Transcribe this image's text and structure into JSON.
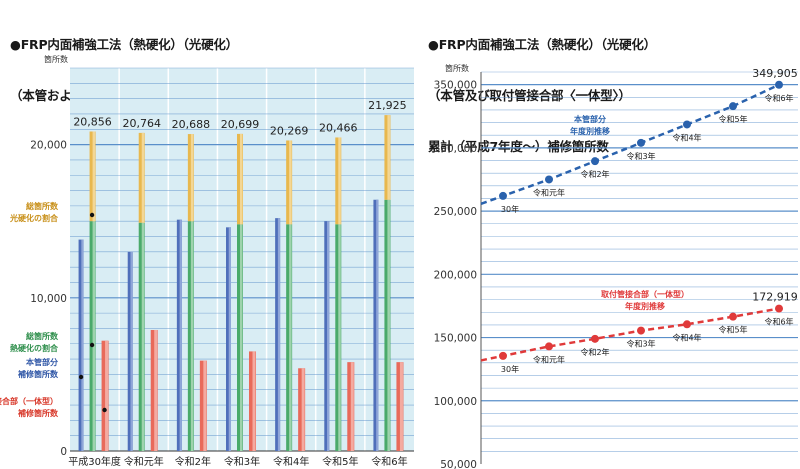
{
  "left_title": [
    "●FRP内面補強工法（熱硬化）（光硬化）",
    "（本管および取付管接合部〈一体型〉）補修箇所数"
  ],
  "right_title": [
    "●FRP内面補強工法（熱硬化）（光硬化）",
    "（本管及び取付管接合部〈一体型〉）",
    "累計（平成7年度～）補修箇所数"
  ],
  "colors": {
    "bg_panel": "#d9edf4",
    "grid": "#5a8fca",
    "blue": "#4f6fba",
    "green": "#4aaa6a",
    "yellow": "#e8b84e",
    "red": "#e86a5a",
    "blue_line": "#2a62ad",
    "red_line": "#e03a3a"
  },
  "chart_data": [
    {
      "type": "bar",
      "title": "FRP内面補強工法（熱硬化）（光硬化）（本管および取付管接合部〈一体型〉）補修箇所数",
      "ylabel": "箇所数",
      "ylim": [
        0,
        25000
      ],
      "yticks": [
        0,
        10000,
        20000
      ],
      "ytick_labels": [
        "0",
        "10,000",
        "20,000"
      ],
      "categories": [
        "平成30年度",
        "令和元年",
        "令和2年",
        "令和3年",
        "令和4年",
        "令和5年",
        "令和6年"
      ],
      "totals": [
        20856,
        20764,
        20688,
        20699,
        20269,
        20466,
        21925
      ],
      "total_labels": [
        "20,856",
        "20,764",
        "20,688",
        "20,699",
        "20,269",
        "20,466",
        "21,925"
      ],
      "series": [
        {
          "name": "本管部分 補修箇所数",
          "values": [
            13800,
            13000,
            15100,
            14600,
            15200,
            15000,
            16400
          ]
        },
        {
          "name": "総箇所数 熱硬化の割合",
          "values": [
            15000,
            14900,
            15000,
            14800,
            14800,
            14800,
            16400
          ]
        },
        {
          "name": "総箇所数 光硬化の割合",
          "values": [
            20856,
            20764,
            20688,
            20699,
            20269,
            20466,
            21925
          ]
        },
        {
          "name": "接合部（一体型） 補修箇所数",
          "values": [
            7200,
            7900,
            5900,
            6500,
            5400,
            5800,
            5800
          ]
        }
      ],
      "annotations": [
        {
          "lines": [
            "総箇所数",
            "光硬化の割合"
          ],
          "color": "#c8901a"
        },
        {
          "lines": [
            "総箇所数",
            "熱硬化の割合"
          ],
          "color": "#2f8f4c"
        },
        {
          "lines": [
            "本管部分",
            "補修箇所数"
          ],
          "color": "#2f56a6"
        },
        {
          "lines": [
            "接合部（一体型）",
            "補修箇所数"
          ],
          "color": "#d8392b"
        }
      ]
    },
    {
      "type": "line",
      "title": "FRP内面補強工法（熱硬化）（光硬化）（本管及び取付管接合部〈一体型〉）累計（平成7年度～）補修箇所数",
      "ylabel": "箇所数",
      "ylim": [
        50000,
        360000
      ],
      "yticks": [
        50000,
        100000,
        150000,
        200000,
        250000,
        300000,
        350000
      ],
      "ytick_labels": [
        "50,000",
        "100,000",
        "150,000",
        "200,000",
        "250,000",
        "300,000",
        "350,000"
      ],
      "x": [
        "30年",
        "令和元年",
        "令和2年",
        "令和3年",
        "令和4年",
        "令和5年",
        "令和6年"
      ],
      "series": [
        {
          "name": "本管部分 年度別推移",
          "values": [
            262000,
            275000,
            289500,
            304000,
            318500,
            333000,
            349905
          ],
          "end_label": "349,905",
          "color": "#2a62ad",
          "label_lines": [
            "本管部分",
            "年度別推移"
          ]
        },
        {
          "name": "取付管接合部（一体型） 年度別推移",
          "values": [
            135500,
            143000,
            149000,
            155500,
            160500,
            166500,
            172919
          ],
          "end_label": "172,919",
          "color": "#e03a3a",
          "label_lines": [
            "取付管接合部（一体型）",
            "年度別推移"
          ]
        }
      ]
    }
  ]
}
